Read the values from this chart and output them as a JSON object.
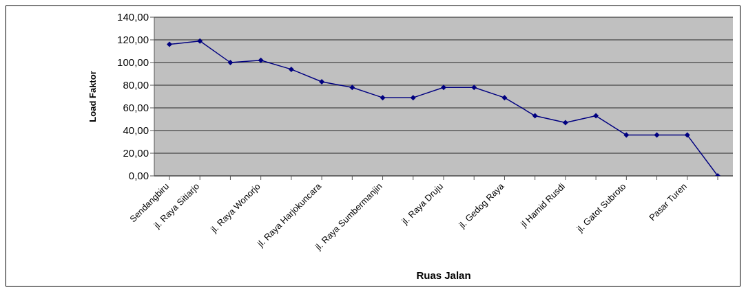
{
  "chart_data": {
    "type": "line",
    "xlabel": "Ruas Jalan",
    "ylabel": "Load Faktor",
    "categories": [
      "Sendangbiru",
      "jl. Raya Sitiarjo",
      null,
      "jl. Raya Wonorjo",
      null,
      "jl. Raya Harjokuncara",
      null,
      "jl. Raya Sumbermanjin",
      null,
      "jl. Raya Druju",
      null,
      "jl. Gedog Raya",
      null,
      "jl Hamid Rusdi",
      null,
      "jl. Gatot Subroto",
      null,
      "Pasar Turen",
      null
    ],
    "series": [
      {
        "color": "#000080",
        "values": [
          116,
          119,
          100,
          102,
          94,
          83,
          78,
          69,
          69,
          78,
          78,
          69,
          53,
          47,
          53,
          36,
          36,
          36,
          0
        ]
      }
    ],
    "ylim": [
      0,
      140
    ],
    "yticks": [
      {
        "value": 0,
        "label": "0,00"
      },
      {
        "value": 20,
        "label": "20,00"
      },
      {
        "value": 40,
        "label": "40,00"
      },
      {
        "value": 60,
        "label": "60,00"
      },
      {
        "value": 80,
        "label": "80,00"
      },
      {
        "value": 100,
        "label": "100,00"
      },
      {
        "value": 120,
        "label": "120,00"
      },
      {
        "value": 140,
        "label": "140,00"
      }
    ],
    "grid": "y",
    "legend": false,
    "marker": "diamond",
    "line_style": "solid"
  }
}
